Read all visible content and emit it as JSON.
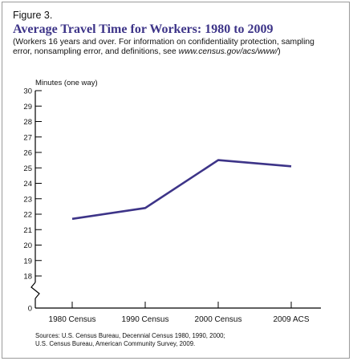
{
  "figure_label": "Figure 3.",
  "subtitle": {
    "text": "(Workers 16 years and over. For information on confidentiality protection, sampling error, nonsampling error, and definitions, see ",
    "url": "www.census.gov/acs/www/",
    "close": ")"
  },
  "sources": [
    "Sources: U.S. Census Bureau, Decennial Census 1980, 1990, 2000;",
    "U.S. Census Bureau, American Community Survey, 2009."
  ],
  "colors": {
    "line": "#3d3488",
    "title": "#3d3488",
    "axis": "#000000"
  },
  "chart_data": {
    "type": "line",
    "title": "Average Travel Time for Workers: 1980 to 2009",
    "ylabel": "Minutes (one way)",
    "xlabel": "",
    "categories": [
      "1980 Census",
      "1990 Census",
      "2000 Census",
      "2009 ACS"
    ],
    "series": [
      {
        "values": [
          21.7,
          22.4,
          25.5,
          25.1
        ]
      }
    ],
    "ylim": [
      18,
      30
    ],
    "yticks": [
      18,
      19,
      20,
      21,
      22,
      23,
      24,
      25,
      26,
      27,
      28,
      29,
      30
    ],
    "y_zero_label": "0",
    "axis_break": true,
    "grid": false,
    "legend": "none"
  }
}
